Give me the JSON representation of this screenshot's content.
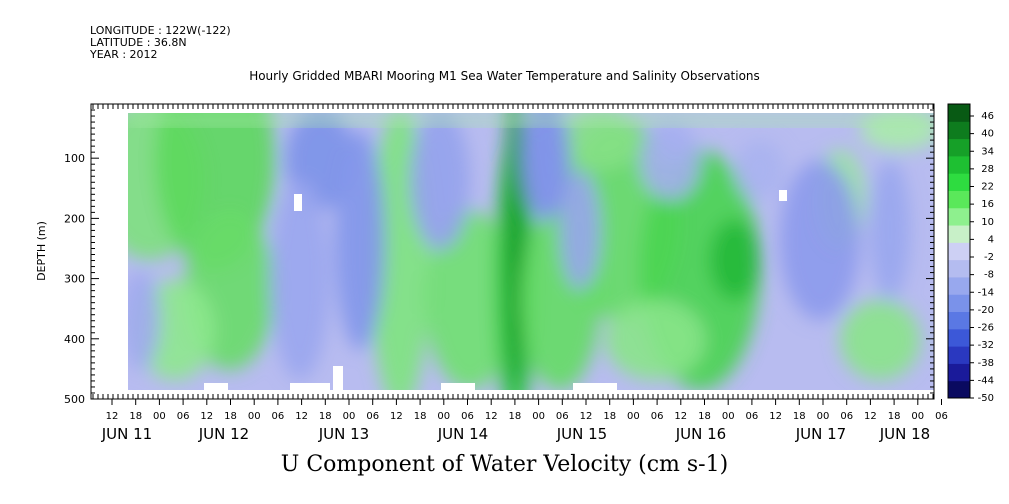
{
  "header": {
    "longitude": "LONGITUDE : 122W(-122)",
    "latitude": "LATITUDE : 36.8N",
    "year": "YEAR : 2012"
  },
  "chart_data": {
    "type": "heatmap",
    "title": "Hourly Gridded MBARI Mooring M1 Sea Water Temperature and Salinity Observations",
    "xlabel": "U Component of Water Velocity (cm s-1)",
    "ylabel": "DEPTH (m)",
    "x_hour_ticks": [
      "12",
      "18",
      "00",
      "06",
      "12",
      "18",
      "00",
      "06",
      "12",
      "18",
      "00",
      "06",
      "12",
      "18",
      "00",
      "06",
      "12",
      "18",
      "00",
      "06",
      "12",
      "18",
      "00",
      "06",
      "12",
      "18",
      "00",
      "06",
      "12",
      "18",
      "00",
      "06",
      "12",
      "18",
      "00",
      "06"
    ],
    "x_day_labels": [
      "JUN 11",
      "JUN 12",
      "JUN 13",
      "JUN 14",
      "JUN 15",
      "JUN 16",
      "JUN 17",
      "JUN 18"
    ],
    "y_ticks": [
      100,
      200,
      300,
      400,
      500
    ],
    "ylim": [
      500,
      10
    ],
    "colorbar": {
      "labels": [
        "46",
        "40",
        "34",
        "28",
        "22",
        "16",
        "10",
        "4",
        "-2",
        "-8",
        "-14",
        "-20",
        "-26",
        "-32",
        "-38",
        "-44",
        "-50"
      ],
      "range": [
        -50,
        52
      ],
      "colors": [
        "#0a0a60",
        "#1a1a9a",
        "#2a38c0",
        "#3c58d8",
        "#5a78e4",
        "#7a92ea",
        "#98a8ee",
        "#b4bcf0",
        "#cdd0f4",
        "#c8f0c8",
        "#8ef08e",
        "#5ae85a",
        "#2edc40",
        "#1ec032",
        "#16a028",
        "#0e7c1e",
        "#085a14"
      ]
    },
    "field_description": "Alternating bands of onshore/offshore U velocity; green (positive) strongest near JUN 12 06h, JUN 14 18h and JUN 16 12h; blue (negative) near JUN 12 18h, JUN 13 12h-JUN 14 00h, JUN 15 00h, JUN 16 12h deep, JUN 17 06-18h"
  }
}
